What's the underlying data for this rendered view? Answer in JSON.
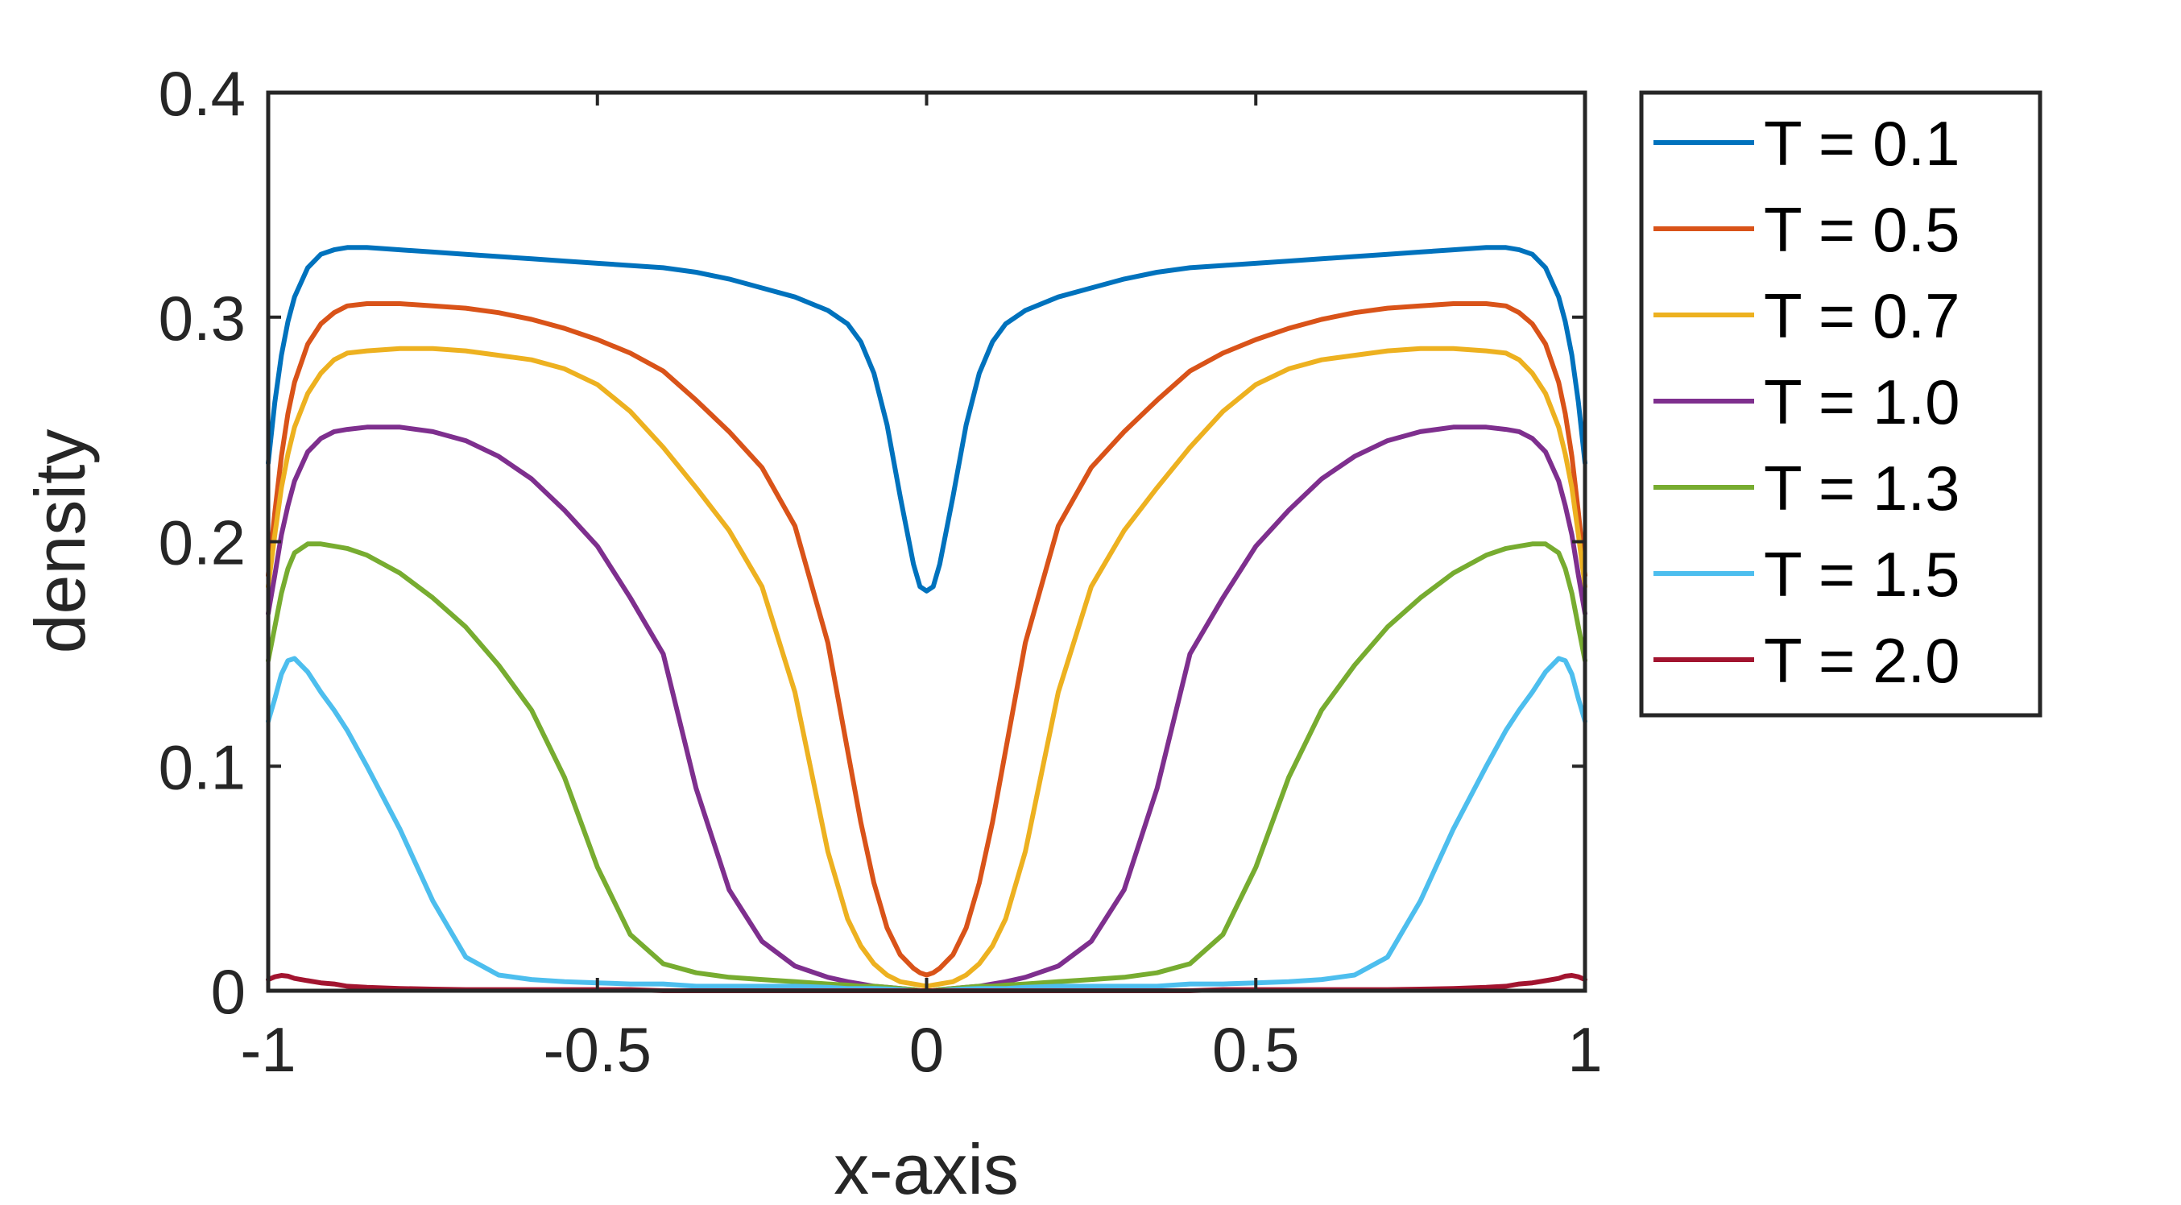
{
  "chart_data": {
    "type": "line",
    "xlabel": "x-axis",
    "ylabel": "density",
    "xlim": [
      -1,
      1
    ],
    "ylim": [
      0,
      0.4
    ],
    "xticks": [
      {
        "value": -1,
        "label": "-1"
      },
      {
        "value": -0.5,
        "label": "-0.5"
      },
      {
        "value": 0,
        "label": "0"
      },
      {
        "value": 0.5,
        "label": "0.5"
      },
      {
        "value": 1,
        "label": "1"
      }
    ],
    "yticks": [
      {
        "value": 0,
        "label": "0"
      },
      {
        "value": 0.1,
        "label": "0.1"
      },
      {
        "value": 0.2,
        "label": "0.2"
      },
      {
        "value": 0.3,
        "label": "0.3"
      },
      {
        "value": 0.4,
        "label": "0.4"
      }
    ],
    "grid": false,
    "legend_position": "outside-right-top",
    "x": [
      0,
      0.01,
      0.02,
      0.04,
      0.06,
      0.08,
      0.1,
      0.12,
      0.15,
      0.2,
      0.25,
      0.3,
      0.35,
      0.4,
      0.45,
      0.5,
      0.55,
      0.6,
      0.65,
      0.7,
      0.75,
      0.8,
      0.85,
      0.88,
      0.9,
      0.92,
      0.94,
      0.96,
      0.97,
      0.98,
      0.99,
      1.0
    ],
    "symmetric_about_zero": true,
    "series": [
      {
        "name": "T = 0.1",
        "color": "#0072BD",
        "values": [
          0.178,
          0.18,
          0.19,
          0.22,
          0.252,
          0.275,
          0.289,
          0.297,
          0.303,
          0.309,
          0.313,
          0.317,
          0.32,
          0.322,
          0.323,
          0.324,
          0.325,
          0.326,
          0.327,
          0.328,
          0.329,
          0.33,
          0.331,
          0.331,
          0.33,
          0.328,
          0.322,
          0.309,
          0.298,
          0.283,
          0.262,
          0.235
        ]
      },
      {
        "name": "T = 0.5",
        "color": "#D95319",
        "values": [
          0.007,
          0.008,
          0.01,
          0.016,
          0.028,
          0.048,
          0.075,
          0.107,
          0.155,
          0.207,
          0.233,
          0.249,
          0.263,
          0.276,
          0.284,
          0.29,
          0.295,
          0.299,
          0.302,
          0.304,
          0.305,
          0.306,
          0.306,
          0.305,
          0.302,
          0.297,
          0.288,
          0.271,
          0.257,
          0.238,
          0.213,
          0.185
        ]
      },
      {
        "name": "T = 0.7",
        "color": "#EDB120",
        "values": [
          0.002,
          0.0025,
          0.003,
          0.004,
          0.007,
          0.012,
          0.02,
          0.032,
          0.062,
          0.133,
          0.18,
          0.205,
          0.224,
          0.242,
          0.258,
          0.27,
          0.277,
          0.281,
          0.283,
          0.285,
          0.286,
          0.286,
          0.285,
          0.284,
          0.281,
          0.275,
          0.266,
          0.251,
          0.239,
          0.224,
          0.203,
          0.18
        ]
      },
      {
        "name": "T = 1.0",
        "color": "#7E2F8E",
        "values": [
          0.0,
          0.0,
          0.0005,
          0.001,
          0.0015,
          0.002,
          0.003,
          0.004,
          0.006,
          0.011,
          0.022,
          0.045,
          0.09,
          0.15,
          0.175,
          0.198,
          0.214,
          0.228,
          0.238,
          0.245,
          0.249,
          0.251,
          0.251,
          0.25,
          0.249,
          0.246,
          0.24,
          0.227,
          0.216,
          0.203,
          0.185,
          0.168
        ]
      },
      {
        "name": "T = 1.3",
        "color": "#77AC30",
        "values": [
          0.0,
          0.0,
          0.0005,
          0.001,
          0.0015,
          0.002,
          0.002,
          0.0025,
          0.003,
          0.004,
          0.005,
          0.006,
          0.008,
          0.012,
          0.025,
          0.055,
          0.095,
          0.125,
          0.145,
          0.162,
          0.175,
          0.186,
          0.194,
          0.197,
          0.198,
          0.199,
          0.199,
          0.195,
          0.188,
          0.177,
          0.162,
          0.147
        ]
      },
      {
        "name": "T = 1.5",
        "color": "#4DBEEE",
        "values": [
          0.0,
          0.0,
          0.0,
          0.0005,
          0.0008,
          0.001,
          0.001,
          0.001,
          0.0015,
          0.002,
          0.002,
          0.002,
          0.002,
          0.003,
          0.003,
          0.0035,
          0.004,
          0.005,
          0.007,
          0.015,
          0.04,
          0.072,
          0.1,
          0.116,
          0.125,
          0.133,
          0.142,
          0.148,
          0.147,
          0.141,
          0.13,
          0.12
        ]
      },
      {
        "name": "T = 2.0",
        "color": "#A2142F",
        "values": [
          0.0,
          0.0,
          0.0,
          0.0,
          0.0,
          0.0,
          0.0,
          0.0,
          0.0,
          0.0,
          0.0,
          0.0,
          0.0,
          0.0,
          0.0005,
          0.0005,
          0.0005,
          0.0005,
          0.0005,
          0.0005,
          0.0007,
          0.001,
          0.0015,
          0.002,
          0.003,
          0.0035,
          0.0045,
          0.0055,
          0.0065,
          0.0068,
          0.0062,
          0.005
        ]
      }
    ]
  }
}
